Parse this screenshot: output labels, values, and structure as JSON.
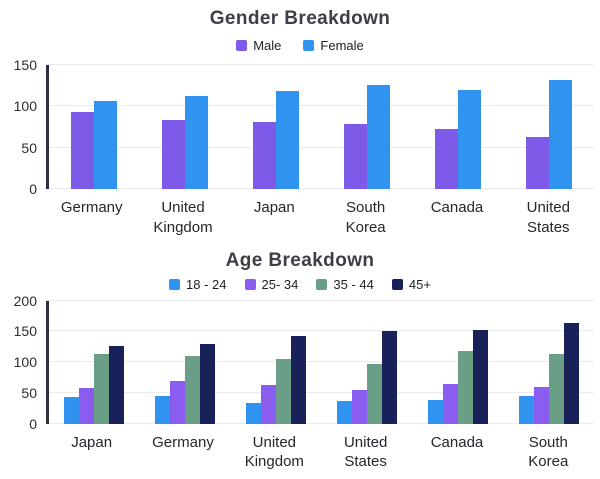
{
  "chart_data": [
    {
      "type": "bar",
      "title": "Gender Breakdown",
      "categories": [
        "Germany",
        "United Kingdom",
        "Japan",
        "South Korea",
        "Canada",
        "United States"
      ],
      "series": [
        {
          "name": "Male",
          "color": "#7d5be8",
          "values": [
            93,
            84,
            81,
            79,
            73,
            63
          ]
        },
        {
          "name": "Female",
          "color": "#3093ef",
          "values": [
            107,
            113,
            118,
            126,
            120,
            132
          ]
        }
      ],
      "xlabel": "",
      "ylabel": "",
      "ylim": [
        0,
        150
      ],
      "yticks": [
        0,
        50,
        100,
        150
      ],
      "grid": true,
      "legend_position": "top",
      "axis_line_color": "#30303c",
      "gridline_color": "#e9e9ee"
    },
    {
      "type": "bar",
      "title": "Age Breakdown",
      "categories": [
        "Japan",
        "Germany",
        "United Kingdom",
        "United States",
        "Canada",
        "South Korea"
      ],
      "series": [
        {
          "name": "18 - 24",
          "color": "#3093ef",
          "values": [
            43,
            45,
            33,
            36,
            39,
            45
          ]
        },
        {
          "name": "25- 34",
          "color": "#8a5cf0",
          "values": [
            58,
            70,
            62,
            54,
            64,
            59
          ]
        },
        {
          "name": "35 - 44",
          "color": "#6b9e86",
          "values": [
            113,
            110,
            105,
            97,
            118,
            113
          ]
        },
        {
          "name": "45+",
          "color": "#18215a",
          "values": [
            127,
            129,
            143,
            150,
            152,
            163
          ]
        }
      ],
      "xlabel": "",
      "ylabel": "",
      "ylim": [
        0,
        200
      ],
      "yticks": [
        0,
        50,
        100,
        150,
        200
      ],
      "grid": true,
      "legend_position": "top",
      "axis_line_color": "#30303c",
      "gridline_color": "#e9e9ee"
    }
  ]
}
